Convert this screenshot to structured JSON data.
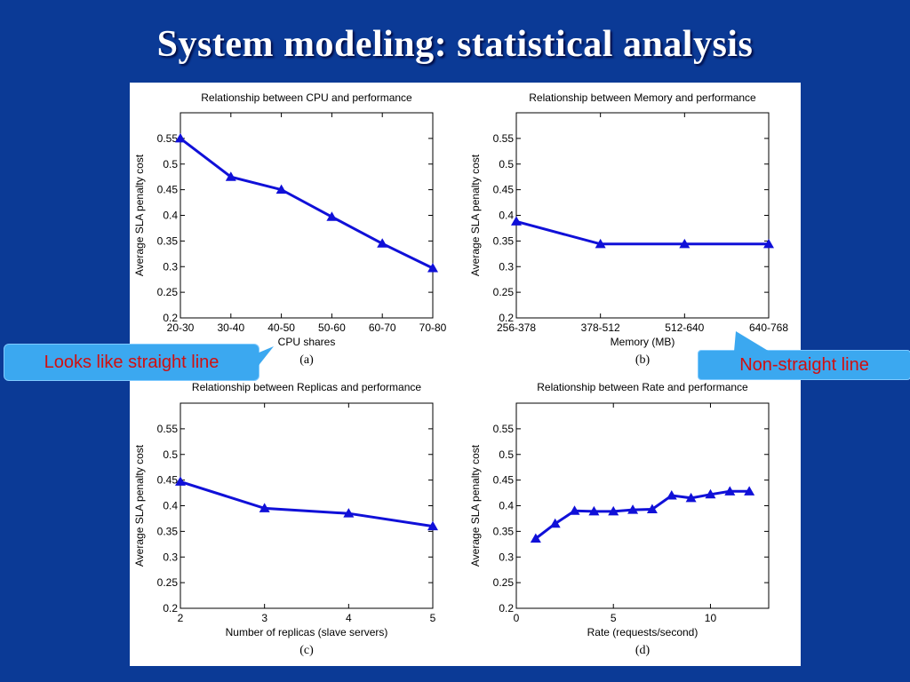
{
  "slide": {
    "title": "System modeling: statistical analysis"
  },
  "callouts": {
    "left": "Looks like straight line",
    "right": "Non-straight line"
  },
  "colors": {
    "background": "#0b3a96",
    "series": "#1010d8",
    "callout_bg": "#3ba8f0",
    "callout_text": "#d01010"
  },
  "chart_data": [
    {
      "type": "line",
      "title": "Relationship between CPU and performance",
      "xlabel": "CPU shares",
      "ylabel": "Average SLA penalty cost",
      "caption": "(a)",
      "x_mode": "categorical",
      "categories": [
        "20-30",
        "30-40",
        "40-50",
        "50-60",
        "60-70",
        "70-80"
      ],
      "values": [
        0.55,
        0.475,
        0.45,
        0.397,
        0.345,
        0.297
      ],
      "ylim": [
        0.2,
        0.6
      ],
      "yticks": [
        0.2,
        0.25,
        0.3,
        0.35,
        0.4,
        0.45,
        0.5,
        0.55
      ],
      "ytick_labels": [
        "0.2",
        "0.25",
        "0.3",
        "0.35",
        "0.4",
        "0.45",
        "0.5",
        "0.55"
      ]
    },
    {
      "type": "line",
      "title": "Relationship between Memory and performance",
      "xlabel": "Memory (MB)",
      "ylabel": "Average SLA penalty cost",
      "caption": "(b)",
      "x_mode": "categorical",
      "categories": [
        "256-378",
        "378-512",
        "512-640",
        "640-768"
      ],
      "values": [
        0.388,
        0.344,
        0.344,
        0.344
      ],
      "ylim": [
        0.2,
        0.6
      ],
      "yticks": [
        0.2,
        0.25,
        0.3,
        0.35,
        0.4,
        0.45,
        0.5,
        0.55
      ],
      "ytick_labels": [
        "0.2",
        "0.25",
        "0.3",
        "0.35",
        "0.4",
        "0.45",
        "0.5",
        "0.55"
      ]
    },
    {
      "type": "line",
      "title": "Relationship between Replicas and performance",
      "xlabel": "Number of replicas (slave servers)",
      "ylabel": "Average SLA penalty cost",
      "caption": "(c)",
      "x_mode": "numeric",
      "x": [
        2,
        3,
        4,
        5
      ],
      "values": [
        0.447,
        0.395,
        0.385,
        0.36
      ],
      "xlim": [
        2,
        5
      ],
      "xticks": [
        2,
        3,
        4,
        5
      ],
      "xtick_labels": [
        "2",
        "3",
        "4",
        "5"
      ],
      "ylim": [
        0.2,
        0.6
      ],
      "yticks": [
        0.2,
        0.25,
        0.3,
        0.35,
        0.4,
        0.45,
        0.5,
        0.55
      ],
      "ytick_labels": [
        "0.2",
        "0.25",
        "0.3",
        "0.35",
        "0.4",
        "0.45",
        "0.5",
        "0.55"
      ]
    },
    {
      "type": "line",
      "title": "Relationship between Rate and performance",
      "xlabel": "Rate (requests/second)",
      "ylabel": "Average SLA penalty cost",
      "caption": "(d)",
      "x_mode": "numeric",
      "x": [
        1,
        2,
        3,
        4,
        5,
        6,
        7,
        8,
        9,
        10,
        11,
        12
      ],
      "values": [
        0.336,
        0.365,
        0.39,
        0.389,
        0.389,
        0.392,
        0.393,
        0.42,
        0.415,
        0.422,
        0.428,
        0.428
      ],
      "xlim": [
        0,
        13
      ],
      "xticks": [
        0,
        5,
        10
      ],
      "xtick_labels": [
        "0",
        "5",
        "10"
      ],
      "ylim": [
        0.2,
        0.6
      ],
      "yticks": [
        0.2,
        0.25,
        0.3,
        0.35,
        0.4,
        0.45,
        0.5,
        0.55
      ],
      "ytick_labels": [
        "0.2",
        "0.25",
        "0.3",
        "0.35",
        "0.4",
        "0.45",
        "0.5",
        "0.55"
      ]
    }
  ]
}
